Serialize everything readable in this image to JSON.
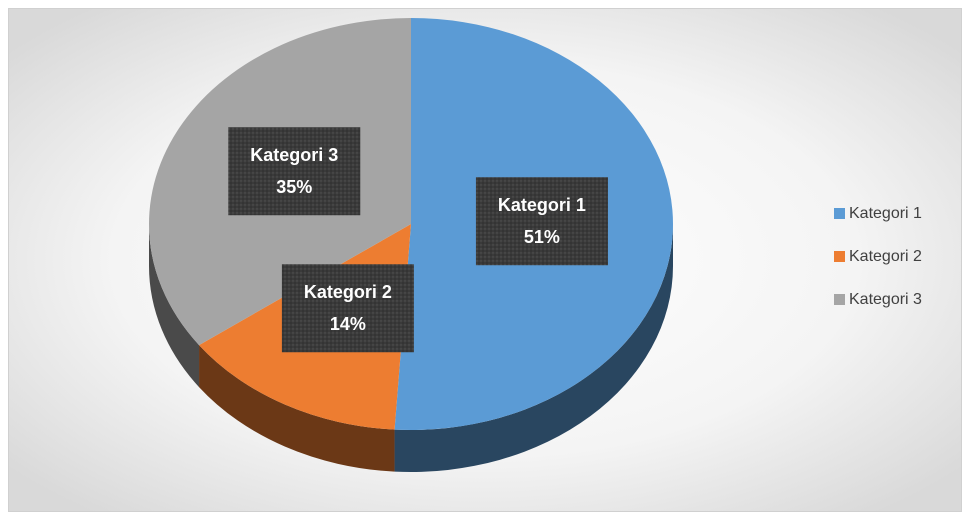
{
  "chart_data": {
    "type": "pie",
    "categories": [
      "Kategori 1",
      "Kategori 2",
      "Kategori 3"
    ],
    "values": [
      51,
      14,
      35
    ],
    "value_labels": [
      "51%",
      "14%",
      "35%"
    ],
    "colors": [
      "#5b9bd5",
      "#ed7d31",
      "#a5a5a5"
    ],
    "legend": "right",
    "three_d": true
  }
}
